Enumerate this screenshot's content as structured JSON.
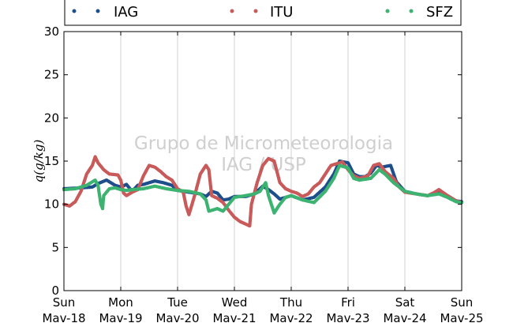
{
  "chart_data": {
    "type": "scatter",
    "ylabel": "q(g/kg)",
    "ylim": [
      0,
      30
    ],
    "yticks": [
      0,
      5,
      10,
      15,
      20,
      25,
      30
    ],
    "xlim": [
      0,
      7
    ],
    "xticks": [
      {
        "x": 0,
        "day": "Sun",
        "date": "Mav-18"
      },
      {
        "x": 1,
        "day": "Mon",
        "date": "Mav-19"
      },
      {
        "x": 2,
        "day": "Tue",
        "date": "Mav-20"
      },
      {
        "x": 3,
        "day": "Wed",
        "date": "Mav-21"
      },
      {
        "x": 4,
        "day": "Thu",
        "date": "Mav-22"
      },
      {
        "x": 5,
        "day": "Fri",
        "date": "Mav-23"
      },
      {
        "x": 6,
        "day": "Sat",
        "date": "Mav-24"
      },
      {
        "x": 7,
        "day": "Sun",
        "date": "Mav-25"
      }
    ],
    "grid": "vertical",
    "legend_position": "top",
    "watermark": [
      "Grupo de Micrometeorologia",
      "IAG / USP"
    ],
    "series": [
      {
        "name": "IAG",
        "color": "#1f4e8c",
        "points": [
          [
            0,
            11.8
          ],
          [
            0.3,
            11.9
          ],
          [
            0.5,
            12.0
          ],
          [
            0.6,
            12.4
          ],
          [
            0.75,
            12.8
          ],
          [
            0.9,
            12.2
          ],
          [
            1.0,
            12.0
          ],
          [
            1.1,
            12.3
          ],
          [
            1.2,
            11.5
          ],
          [
            1.3,
            12.2
          ],
          [
            1.4,
            12.3
          ],
          [
            1.6,
            12.7
          ],
          [
            1.75,
            12.5
          ],
          [
            1.9,
            12.2
          ],
          [
            2.0,
            11.6
          ],
          [
            2.2,
            11.4
          ],
          [
            2.4,
            11.2
          ],
          [
            2.5,
            10.9
          ],
          [
            2.6,
            11.5
          ],
          [
            2.7,
            11.3
          ],
          [
            2.8,
            10.5
          ],
          [
            2.9,
            10.6
          ],
          [
            3.0,
            10.9
          ],
          [
            3.2,
            10.9
          ],
          [
            3.35,
            11.2
          ],
          [
            3.5,
            12.1
          ],
          [
            3.6,
            11.7
          ],
          [
            3.7,
            11.2
          ],
          [
            3.8,
            10.6
          ],
          [
            3.9,
            10.8
          ],
          [
            4.0,
            11.0
          ],
          [
            4.2,
            10.5
          ],
          [
            4.4,
            10.8
          ],
          [
            4.6,
            12.0
          ],
          [
            4.75,
            13.5
          ],
          [
            4.85,
            15.0
          ],
          [
            5.0,
            14.8
          ],
          [
            5.1,
            13.5
          ],
          [
            5.2,
            13.2
          ],
          [
            5.3,
            13.2
          ],
          [
            5.4,
            13.6
          ],
          [
            5.5,
            14.5
          ],
          [
            5.6,
            14.3
          ],
          [
            5.75,
            14.5
          ],
          [
            5.85,
            12.6
          ],
          [
            6.0,
            11.5
          ],
          [
            6.2,
            11.2
          ],
          [
            6.4,
            11.0
          ],
          [
            6.6,
            11.5
          ],
          [
            6.75,
            11.0
          ],
          [
            6.9,
            10.4
          ],
          [
            7.0,
            10.3
          ]
        ]
      },
      {
        "name": "ITU",
        "color": "#c85a5a",
        "points": [
          [
            0,
            10.0
          ],
          [
            0.1,
            9.8
          ],
          [
            0.2,
            10.3
          ],
          [
            0.3,
            11.5
          ],
          [
            0.4,
            13.5
          ],
          [
            0.5,
            14.5
          ],
          [
            0.55,
            15.5
          ],
          [
            0.6,
            14.8
          ],
          [
            0.7,
            14.0
          ],
          [
            0.8,
            13.5
          ],
          [
            0.95,
            13.4
          ],
          [
            1.0,
            12.8
          ],
          [
            1.05,
            11.3
          ],
          [
            1.1,
            11.0
          ],
          [
            1.2,
            11.4
          ],
          [
            1.3,
            11.7
          ],
          [
            1.4,
            13.3
          ],
          [
            1.5,
            14.5
          ],
          [
            1.6,
            14.3
          ],
          [
            1.7,
            13.8
          ],
          [
            1.8,
            13.2
          ],
          [
            1.9,
            12.8
          ],
          [
            2.0,
            11.8
          ],
          [
            2.1,
            11.4
          ],
          [
            2.15,
            9.8
          ],
          [
            2.2,
            8.8
          ],
          [
            2.3,
            11.0
          ],
          [
            2.4,
            13.5
          ],
          [
            2.5,
            14.5
          ],
          [
            2.55,
            14.0
          ],
          [
            2.6,
            11.0
          ],
          [
            2.7,
            10.7
          ],
          [
            2.8,
            10.2
          ],
          [
            2.9,
            9.3
          ],
          [
            3.0,
            8.5
          ],
          [
            3.1,
            8.0
          ],
          [
            3.2,
            7.7
          ],
          [
            3.27,
            7.5
          ],
          [
            3.3,
            10.0
          ],
          [
            3.4,
            12.5
          ],
          [
            3.5,
            14.5
          ],
          [
            3.6,
            15.3
          ],
          [
            3.7,
            15.0
          ],
          [
            3.8,
            12.5
          ],
          [
            3.9,
            11.8
          ],
          [
            4.0,
            11.5
          ],
          [
            4.1,
            11.3
          ],
          [
            4.2,
            10.9
          ],
          [
            4.3,
            11.2
          ],
          [
            4.4,
            12.0
          ],
          [
            4.5,
            12.5
          ],
          [
            4.6,
            13.5
          ],
          [
            4.7,
            14.5
          ],
          [
            4.8,
            14.7
          ],
          [
            4.9,
            14.9
          ],
          [
            5.0,
            14.0
          ],
          [
            5.1,
            13.3
          ],
          [
            5.2,
            13.0
          ],
          [
            5.35,
            13.3
          ],
          [
            5.45,
            14.5
          ],
          [
            5.55,
            14.7
          ],
          [
            5.65,
            13.8
          ],
          [
            5.8,
            13.0
          ],
          [
            5.9,
            12.0
          ],
          [
            6.0,
            11.4
          ],
          [
            6.2,
            11.2
          ],
          [
            6.4,
            11.0
          ],
          [
            6.5,
            11.3
          ],
          [
            6.6,
            11.7
          ],
          [
            6.75,
            11.0
          ],
          [
            6.9,
            10.4
          ],
          [
            7.0,
            10.2
          ]
        ]
      },
      {
        "name": "SFZ",
        "color": "#3cb371",
        "points": [
          [
            0,
            11.7
          ],
          [
            0.2,
            11.8
          ],
          [
            0.4,
            12.2
          ],
          [
            0.55,
            12.8
          ],
          [
            0.6,
            12.2
          ],
          [
            0.65,
            10.0
          ],
          [
            0.68,
            9.5
          ],
          [
            0.7,
            11.0
          ],
          [
            0.8,
            11.8
          ],
          [
            0.9,
            11.9
          ],
          [
            1.0,
            11.7
          ],
          [
            1.1,
            11.6
          ],
          [
            1.2,
            11.7
          ],
          [
            1.4,
            11.8
          ],
          [
            1.6,
            12.1
          ],
          [
            1.8,
            11.8
          ],
          [
            2.0,
            11.6
          ],
          [
            2.2,
            11.5
          ],
          [
            2.4,
            11.2
          ],
          [
            2.5,
            10.5
          ],
          [
            2.55,
            9.2
          ],
          [
            2.7,
            9.5
          ],
          [
            2.8,
            9.2
          ],
          [
            2.9,
            10.0
          ],
          [
            3.0,
            10.8
          ],
          [
            3.2,
            11.0
          ],
          [
            3.35,
            11.2
          ],
          [
            3.45,
            11.5
          ],
          [
            3.55,
            12.5
          ],
          [
            3.6,
            11.0
          ],
          [
            3.65,
            10.0
          ],
          [
            3.7,
            9.0
          ],
          [
            3.8,
            10.0
          ],
          [
            3.9,
            10.8
          ],
          [
            4.0,
            11.0
          ],
          [
            4.2,
            10.5
          ],
          [
            4.4,
            10.2
          ],
          [
            4.6,
            11.5
          ],
          [
            4.75,
            13.0
          ],
          [
            4.85,
            14.5
          ],
          [
            5.0,
            14.2
          ],
          [
            5.1,
            13.0
          ],
          [
            5.2,
            12.8
          ],
          [
            5.4,
            13.0
          ],
          [
            5.55,
            14.0
          ],
          [
            5.65,
            13.5
          ],
          [
            5.8,
            12.5
          ],
          [
            5.9,
            12.0
          ],
          [
            6.0,
            11.5
          ],
          [
            6.2,
            11.2
          ],
          [
            6.4,
            11.0
          ],
          [
            6.6,
            11.2
          ],
          [
            6.75,
            10.8
          ],
          [
            6.9,
            10.3
          ],
          [
            7.0,
            10.2
          ]
        ]
      }
    ]
  }
}
